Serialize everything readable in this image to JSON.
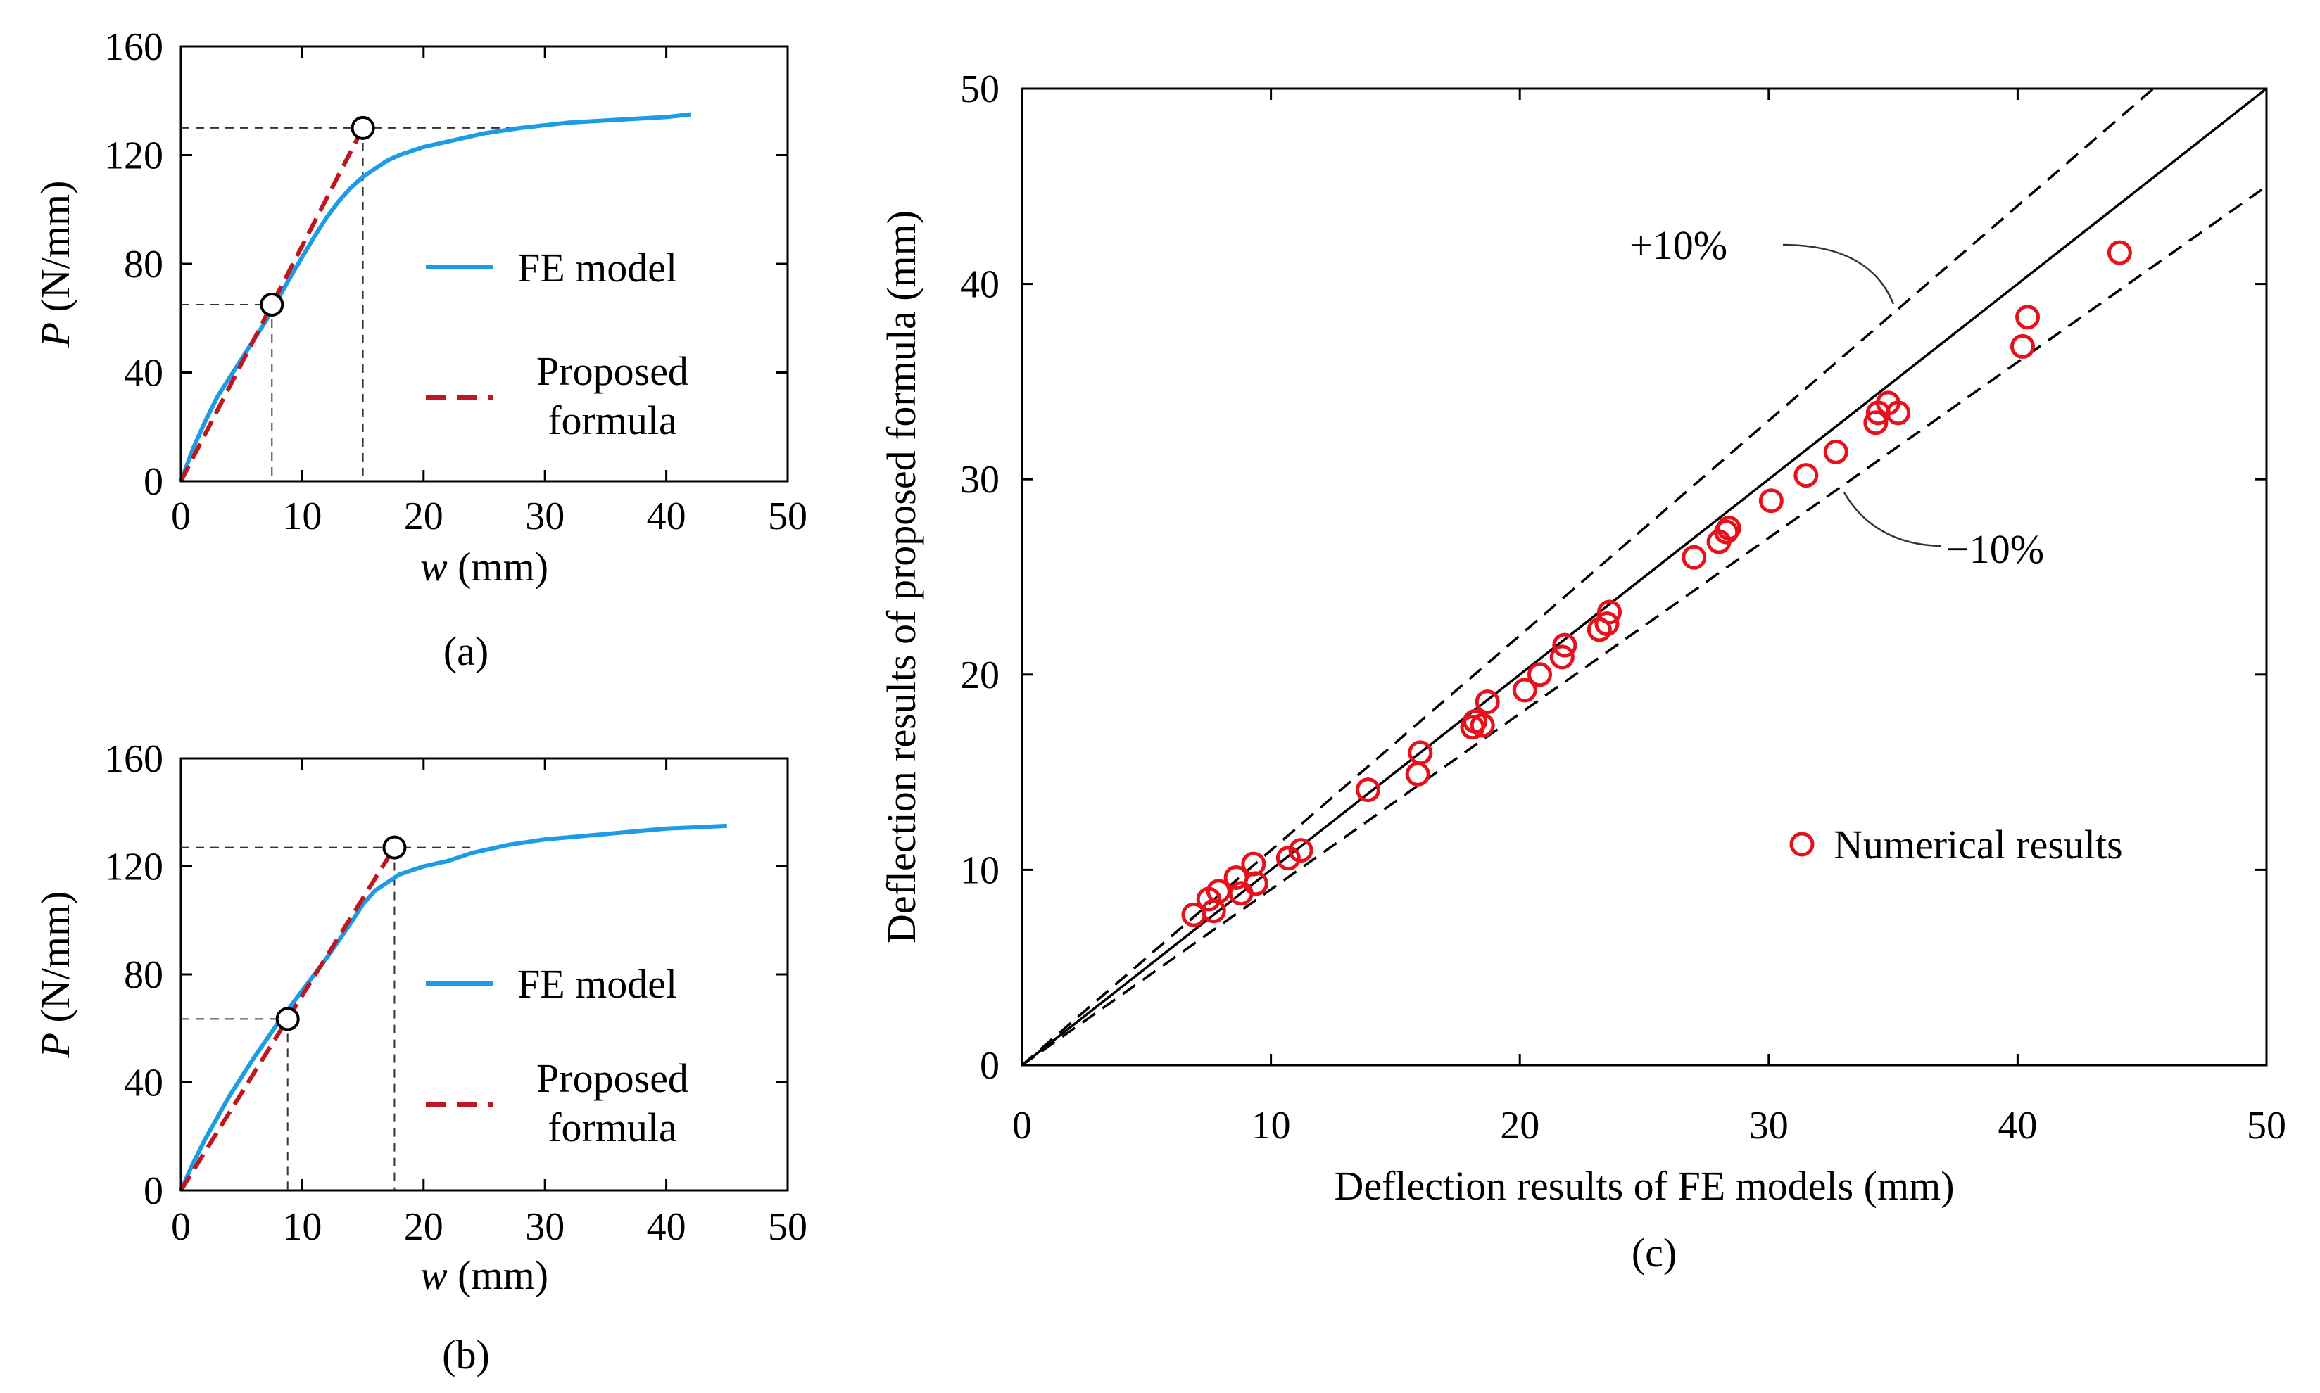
{
  "colors": {
    "fe_model": "#1e9be6",
    "proposed_formula": "#c0161e",
    "numerical": "#e8101a",
    "axis": "#000000",
    "guide": "#333333"
  },
  "chart_data": [
    {
      "id": "a",
      "type": "line",
      "caption": "(a)",
      "xlabel_var": "w",
      "xlabel_unit": " (mm)",
      "ylabel_var": "P",
      "ylabel_unit": " (N/mm)",
      "xlim": [
        0,
        50
      ],
      "ylim": [
        0,
        160
      ],
      "xticks": [
        "0",
        "10",
        "20",
        "30",
        "40",
        "50"
      ],
      "yticks": [
        "0",
        "40",
        "80",
        "120",
        "160"
      ],
      "legend_position": "right",
      "series": [
        {
          "name": "FE model",
          "style": "solid",
          "x": [
            0,
            1,
            2,
            3,
            5,
            7,
            9,
            11,
            12,
            13,
            14,
            15,
            16,
            17,
            18,
            20,
            22,
            25,
            28,
            32,
            36,
            40,
            42
          ],
          "y": [
            0,
            12,
            22,
            31,
            45,
            59,
            75,
            90,
            97,
            103,
            108,
            112,
            115,
            118,
            120,
            123,
            125,
            128,
            130,
            132,
            133,
            134,
            135
          ]
        },
        {
          "name": "Proposed formula",
          "style": "dashed",
          "x": [
            0,
            7.5,
            15
          ],
          "y": [
            0,
            65,
            130
          ]
        }
      ],
      "markers": [
        {
          "x": 7.5,
          "y": 65
        },
        {
          "x": 15,
          "y": 130
        }
      ],
      "guides": [
        {
          "x": 7.5,
          "y": 65
        },
        {
          "x": 15,
          "y": 130,
          "x_end": 28
        }
      ]
    },
    {
      "id": "b",
      "type": "line",
      "caption": "(b)",
      "xlabel_var": "w",
      "xlabel_unit": " (mm)",
      "ylabel_var": "P",
      "ylabel_unit": " (N/mm)",
      "xlim": [
        0,
        50
      ],
      "ylim": [
        0,
        160
      ],
      "xticks": [
        "0",
        "10",
        "20",
        "30",
        "40",
        "50"
      ],
      "yticks": [
        "0",
        "40",
        "80",
        "120",
        "160"
      ],
      "legend_position": "right",
      "series": [
        {
          "name": "FE model",
          "style": "solid",
          "x": [
            0,
            1,
            2,
            4,
            6,
            8,
            10,
            12,
            14,
            15,
            16,
            17,
            18,
            20,
            22,
            24,
            27,
            30,
            35,
            40,
            45
          ],
          "y": [
            0,
            10,
            19,
            35,
            49,
            62,
            74,
            86,
            99,
            106,
            111,
            114,
            117,
            120,
            122,
            125,
            128,
            130,
            132,
            134,
            135
          ]
        },
        {
          "name": "Proposed formula",
          "style": "dashed",
          "x": [
            0,
            8.8,
            17.6
          ],
          "y": [
            0,
            63.5,
            127
          ]
        }
      ],
      "markers": [
        {
          "x": 8.8,
          "y": 63.5
        },
        {
          "x": 17.6,
          "y": 127
        }
      ],
      "guides": [
        {
          "x": 8.8,
          "y": 63.5
        },
        {
          "x": 17.6,
          "y": 127,
          "x_end": 24
        }
      ]
    },
    {
      "id": "c",
      "type": "scatter",
      "caption": "(c)",
      "xlabel": "Deflection results of FE models (mm)",
      "ylabel": "Deflection results of proposed formula (mm)",
      "xlim": [
        0,
        50
      ],
      "ylim": [
        0,
        50
      ],
      "xticks": [
        "0",
        "10",
        "20",
        "30",
        "40",
        "50"
      ],
      "yticks": [
        "0",
        "10",
        "20",
        "30",
        "40",
        "50"
      ],
      "legend_position": "bottom-right",
      "annotations": [
        "+10%",
        "−10%"
      ],
      "reference_lines": [
        {
          "label": "",
          "slope": 1.0
        },
        {
          "label": "+10%",
          "slope": 1.1
        },
        {
          "label": "−10%",
          "slope": 0.9
        }
      ],
      "series": [
        {
          "name": "Numerical results",
          "x": [
            6.9,
            7.5,
            7.7,
            7.9,
            8.6,
            8.8,
            9.3,
            9.4,
            10.7,
            11.2,
            13.9,
            15.9,
            16.0,
            18.1,
            18.2,
            18.5,
            18.7,
            20.2,
            20.8,
            21.7,
            21.8,
            23.2,
            23.5,
            23.6,
            27.0,
            28.0,
            28.3,
            28.4,
            30.1,
            31.5,
            32.7,
            34.3,
            34.4,
            34.8,
            35.2,
            40.2,
            40.4,
            44.1
          ],
          "y": [
            7.7,
            8.5,
            7.9,
            8.9,
            9.6,
            8.8,
            10.3,
            9.3,
            10.6,
            11.0,
            14.1,
            14.9,
            16.0,
            17.3,
            17.6,
            17.4,
            18.6,
            19.2,
            20.0,
            20.9,
            21.5,
            22.3,
            22.6,
            23.2,
            26.0,
            26.8,
            27.3,
            27.5,
            28.9,
            30.2,
            31.4,
            32.9,
            33.4,
            33.9,
            33.4,
            36.8,
            38.3,
            41.6
          ]
        }
      ]
    }
  ]
}
